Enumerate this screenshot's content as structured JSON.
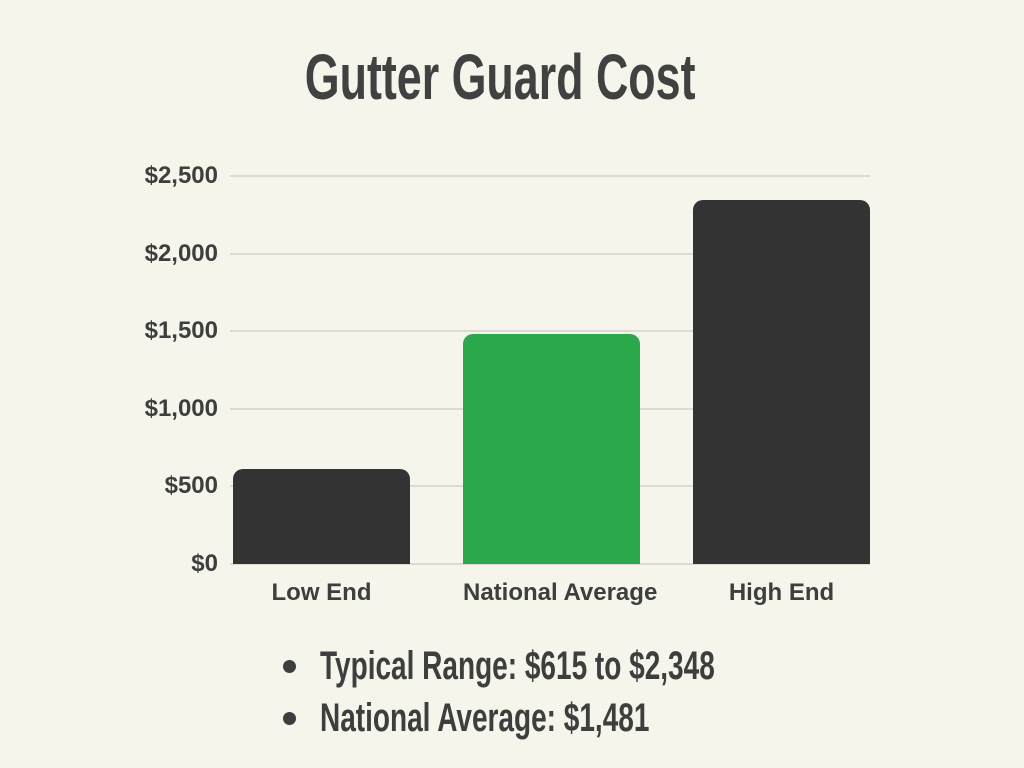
{
  "title": "Gutter Guard Cost",
  "chart_data": {
    "type": "bar",
    "title": "Gutter Guard Cost",
    "categories": [
      "Low End",
      "National Average",
      "High End"
    ],
    "values": [
      615,
      1481,
      2348
    ],
    "bar_colors": [
      "#333333",
      "#2BA84C",
      "#333333"
    ],
    "xlabel": "",
    "ylabel": "",
    "ylim": [
      0,
      2500
    ],
    "yticks": [
      0,
      500,
      1000,
      1500,
      2000,
      2500
    ],
    "ytick_labels": [
      "$0",
      "$500",
      "$1,000",
      "$1,500",
      "$2,000",
      "$2,500"
    ],
    "grid": true,
    "legend": false,
    "annotations": [
      "Typical Range: $615 to $2,348",
      "National Average: $1,481"
    ]
  },
  "notes": [
    "Typical Range: $615 to $2,348",
    "National Average: $1,481"
  ],
  "colors": {
    "background": "#F5F5EC",
    "bar_dark": "#333333",
    "bar_accent": "#2BA84C",
    "text": "#3E3E3E",
    "gridline": "#DBDBD2"
  }
}
